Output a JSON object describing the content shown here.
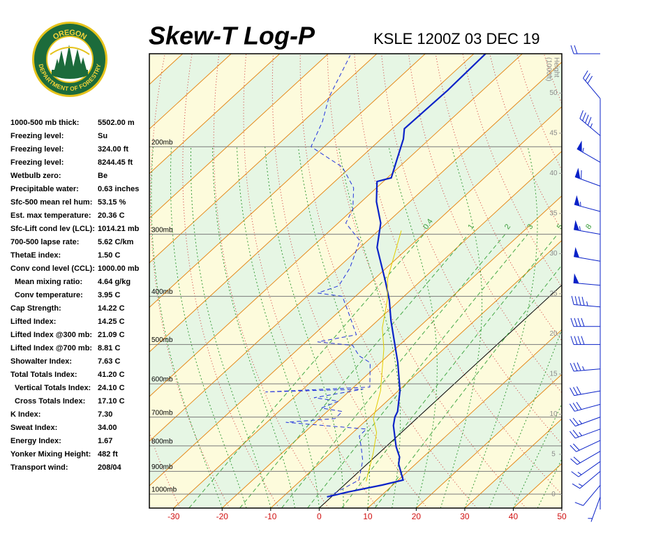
{
  "logo": {
    "top": "OREGON",
    "bottom": "DEPARTMENT OF FORESTRY"
  },
  "indices": [
    [
      "1000-500 mb thick:",
      "5502.00 m"
    ],
    [
      "Freezing level:",
      "Su"
    ],
    [
      "Freezing level:",
      "324.00 ft"
    ],
    [
      "Freezing level:",
      "8244.45 ft"
    ],
    [
      "Wetbulb zero:",
      "Be"
    ],
    [
      "Precipitable water:",
      "0.63 inches"
    ],
    [
      "Sfc-500 mean rel hum:",
      "53.15 %"
    ],
    [
      "Est. max temperature:",
      "20.36 C"
    ],
    [
      "Sfc-Lift cond lev (LCL):",
      "1014.21 mb"
    ],
    [
      "700-500 lapse rate:",
      "5.62 C/km"
    ],
    [
      "ThetaE index:",
      "1.50 C"
    ],
    [
      "Conv cond level (CCL):",
      "1000.00 mb"
    ],
    [
      "Mean mixing ratio:",
      "4.64 g/kg"
    ],
    [
      "Conv temperature:",
      "3.95 C"
    ],
    [
      "Cap Strength:",
      "14.22 C"
    ],
    [
      "Lifted Index:",
      "14.25 C"
    ],
    [
      "Lifted Index @300 mb:",
      "21.09 C"
    ],
    [
      "Lifted Index @700 mb:",
      "8.81 C"
    ],
    [
      "Showalter Index:",
      "7.63 C"
    ],
    [
      "Total Totals Index:",
      "41.20 C"
    ],
    [
      "Vertical Totals Index:",
      "24.10 C"
    ],
    [
      "Cross Totals Index:",
      "17.10 C"
    ],
    [
      "K Index:",
      "7.30"
    ],
    [
      "Sweat Index:",
      "34.00"
    ],
    [
      "Energy Index:",
      "1.67"
    ],
    [
      "Yonker Mixing Height:",
      "482 ft"
    ],
    [
      "Transport wind:",
      "208/04"
    ]
  ],
  "chart_data": {
    "type": "skewt",
    "title": "Skew-T Log-P",
    "subtitle": "KSLE 1200Z 03 DEC 19",
    "xlim": [
      -35,
      50
    ],
    "xticks": [
      -30,
      -20,
      -10,
      0,
      10,
      20,
      30,
      40,
      50
    ],
    "ylim": [
      1067,
      130
    ],
    "log_y": true,
    "yticks": [
      {
        "value": 200,
        "label": "200mb"
      },
      {
        "value": 300,
        "label": "300mb"
      },
      {
        "value": 400,
        "label": "400mb"
      },
      {
        "value": 500,
        "label": "500mb"
      },
      {
        "value": 600,
        "label": "600mb"
      },
      {
        "value": 700,
        "label": "700mb"
      },
      {
        "value": 800,
        "label": "800mb"
      },
      {
        "value": 900,
        "label": "900mb"
      },
      {
        "value": 1000,
        "label": "1000mb"
      }
    ],
    "y2label": "Height",
    "y2unit": "(1000ft)",
    "y2lim": [
      -1.7,
      54.9
    ],
    "y2ticks": [
      0,
      5,
      10,
      15,
      20,
      25,
      30,
      35,
      40,
      45,
      50
    ],
    "mixing_ratio_labels": [
      0.4,
      1,
      2,
      3,
      5,
      8
    ],
    "series": [
      {
        "color": "#0a22c8",
        "dash": false,
        "pressure": [
          1013,
          990,
          959,
          937,
          870,
          842,
          803,
          728,
          700,
          682,
          619,
          544,
          448,
          407,
          375,
          319,
          285,
          258,
          235,
          231,
          213,
          193,
          184,
          154,
          129
        ],
        "temperature": [
          -0.9,
          2.4,
          7.8,
          11.0,
          6.5,
          5.1,
          2.1,
          -3.2,
          -4.8,
          -5.5,
          -9.7,
          -16.4,
          -27.2,
          -32.2,
          -36.9,
          -46.5,
          -51.2,
          -56.9,
          -61.3,
          -59.2,
          -62.0,
          -65.4,
          -67.5,
          -67.2,
          -67.6
        ]
      },
      {
        "color": "#2233dd",
        "dash": true,
        "pressure": [
          1013,
          937,
          856,
          803,
          764,
          740,
          717,
          705,
          682,
          671,
          650,
          640,
          615,
          623,
          609,
          544,
          527,
          502,
          494,
          478,
          434,
          400,
          394,
          381,
          351,
          309,
          285,
          267,
          242,
          220,
          200,
          178,
          159,
          131
        ],
        "temperature": [
          -0.7,
          1.9,
          -1.7,
          -5.1,
          -7.9,
          -8.0,
          -26.1,
          -16.8,
          -16.9,
          -22.0,
          -20.0,
          -25.8,
          -17.6,
          -37.1,
          -16.7,
          -22.1,
          -25.9,
          -29.6,
          -37.6,
          -31.2,
          -37.4,
          -42.7,
          -48.5,
          -45.8,
          -47.5,
          -51.6,
          -58.4,
          -60.1,
          -64.7,
          -71.6,
          -82.7,
          -86.0,
          -90.1,
          -95.1
        ]
      },
      {
        "color": "#e2cc00",
        "dash": false,
        "pressure": [
          943,
          829,
          752,
          705,
          619,
          510,
          463,
          407,
          369,
          295
        ],
        "temperature": [
          3.7,
          -1.1,
          -5.1,
          -8.9,
          -13.7,
          -22.4,
          -27.4,
          -32.6,
          -37.3,
          -45.3
        ]
      }
    ],
    "winds": {
      "color": "#0a22c8",
      "pressure": [
        1013,
        960,
        900,
        860,
        820,
        780,
        740,
        700,
        660,
        620,
        560,
        500,
        460,
        420,
        380,
        340,
        300,
        270,
        240,
        215,
        190,
        160,
        130
      ],
      "direction": [
        200,
        220,
        230,
        235,
        240,
        245,
        250,
        250,
        255,
        260,
        265,
        270,
        270,
        275,
        275,
        280,
        280,
        285,
        290,
        300,
        310,
        320,
        270
      ],
      "speed": [
        5,
        10,
        15,
        15,
        20,
        20,
        25,
        25,
        30,
        30,
        35,
        40,
        40,
        45,
        50,
        50,
        55,
        55,
        60,
        55,
        45,
        30,
        20
      ]
    }
  }
}
